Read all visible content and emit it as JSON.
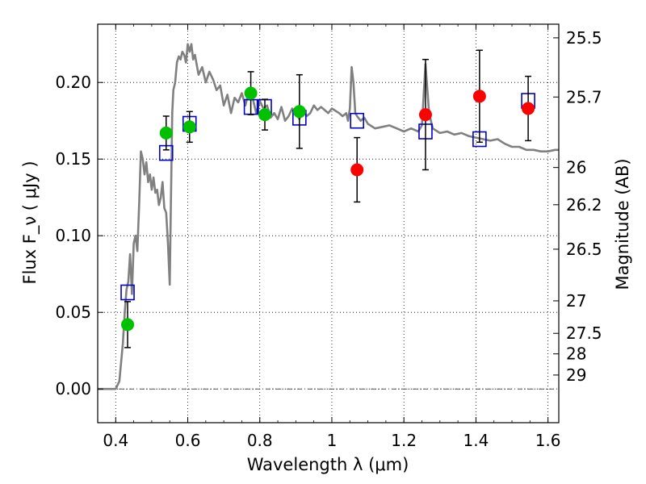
{
  "chart_data": {
    "type": "scatter",
    "xlabel": "Wavelength  λ (μm)",
    "ylabel": "Flux  F_ν  ( μJy )",
    "ylabel_right": "Magnitude (AB)",
    "xlim": [
      0.35,
      1.63
    ],
    "ylim": [
      -0.022,
      0.238
    ],
    "grid": true,
    "x_ticks": [
      {
        "value": 0.4,
        "label": "0.4"
      },
      {
        "value": 0.6,
        "label": "0.6"
      },
      {
        "value": 0.8,
        "label": "0.8"
      },
      {
        "value": 1.0,
        "label": "1"
      },
      {
        "value": 1.2,
        "label": "1.2"
      },
      {
        "value": 1.4,
        "label": "1.4"
      },
      {
        "value": 1.6,
        "label": "1.6"
      }
    ],
    "y_ticks": [
      {
        "value": 0.0,
        "label": "0.00"
      },
      {
        "value": 0.05,
        "label": "0.05"
      },
      {
        "value": 0.1,
        "label": "0.10"
      },
      {
        "value": 0.15,
        "label": "0.15"
      },
      {
        "value": 0.2,
        "label": "0.20"
      }
    ],
    "mag_ticks": [
      {
        "label": "25.5",
        "flux": 0.2291
      },
      {
        "label": "25.7",
        "flux": 0.1905
      },
      {
        "label": "26",
        "flux": 0.1445
      },
      {
        "label": "26.2",
        "flux": 0.1202
      },
      {
        "label": "26.5",
        "flux": 0.0912
      },
      {
        "label": "27",
        "flux": 0.0575
      },
      {
        "label": "27.5",
        "flux": 0.0363
      },
      {
        "label": "28",
        "flux": 0.0229
      },
      {
        "label": "29",
        "flux": 0.0091
      }
    ],
    "series": [
      {
        "kind": "line",
        "color": "#808080",
        "points": [
          [
            0.35,
            0.0
          ],
          [
            0.4,
            0.0
          ],
          [
            0.41,
            0.005
          ],
          [
            0.42,
            0.03
          ],
          [
            0.425,
            0.05
          ],
          [
            0.43,
            0.065
          ],
          [
            0.435,
            0.07
          ],
          [
            0.44,
            0.088
          ],
          [
            0.445,
            0.062
          ],
          [
            0.45,
            0.095
          ],
          [
            0.455,
            0.1
          ],
          [
            0.46,
            0.09
          ],
          [
            0.465,
            0.12
          ],
          [
            0.47,
            0.155
          ],
          [
            0.475,
            0.15
          ],
          [
            0.48,
            0.14
          ],
          [
            0.485,
            0.148
          ],
          [
            0.49,
            0.135
          ],
          [
            0.495,
            0.14
          ],
          [
            0.5,
            0.13
          ],
          [
            0.505,
            0.138
          ],
          [
            0.51,
            0.128
          ],
          [
            0.515,
            0.13
          ],
          [
            0.52,
            0.12
          ],
          [
            0.525,
            0.125
          ],
          [
            0.53,
            0.135
          ],
          [
            0.535,
            0.118
          ],
          [
            0.54,
            0.115
          ],
          [
            0.545,
            0.095
          ],
          [
            0.55,
            0.068
          ],
          [
            0.553,
            0.12
          ],
          [
            0.557,
            0.18
          ],
          [
            0.56,
            0.195
          ],
          [
            0.565,
            0.2
          ],
          [
            0.57,
            0.213
          ],
          [
            0.575,
            0.217
          ],
          [
            0.58,
            0.215
          ],
          [
            0.585,
            0.22
          ],
          [
            0.59,
            0.218
          ],
          [
            0.595,
            0.213
          ],
          [
            0.6,
            0.225
          ],
          [
            0.605,
            0.22
          ],
          [
            0.61,
            0.225
          ],
          [
            0.615,
            0.215
          ],
          [
            0.62,
            0.218
          ],
          [
            0.63,
            0.205
          ],
          [
            0.64,
            0.21
          ],
          [
            0.65,
            0.2
          ],
          [
            0.66,
            0.207
          ],
          [
            0.67,
            0.202
          ],
          [
            0.68,
            0.195
          ],
          [
            0.69,
            0.198
          ],
          [
            0.7,
            0.185
          ],
          [
            0.71,
            0.192
          ],
          [
            0.72,
            0.18
          ],
          [
            0.73,
            0.19
          ],
          [
            0.74,
            0.187
          ],
          [
            0.75,
            0.193
          ],
          [
            0.76,
            0.185
          ],
          [
            0.77,
            0.195
          ],
          [
            0.78,
            0.19
          ],
          [
            0.79,
            0.18
          ],
          [
            0.8,
            0.188
          ],
          [
            0.81,
            0.183
          ],
          [
            0.82,
            0.185
          ],
          [
            0.83,
            0.177
          ],
          [
            0.84,
            0.18
          ],
          [
            0.85,
            0.176
          ],
          [
            0.86,
            0.184
          ],
          [
            0.87,
            0.175
          ],
          [
            0.88,
            0.178
          ],
          [
            0.89,
            0.183
          ],
          [
            0.9,
            0.18
          ],
          [
            0.91,
            0.176
          ],
          [
            0.92,
            0.183
          ],
          [
            0.93,
            0.178
          ],
          [
            0.94,
            0.18
          ],
          [
            0.95,
            0.185
          ],
          [
            0.96,
            0.182
          ],
          [
            0.97,
            0.184
          ],
          [
            0.98,
            0.182
          ],
          [
            0.99,
            0.18
          ],
          [
            1.0,
            0.183
          ],
          [
            1.02,
            0.18
          ],
          [
            1.03,
            0.178
          ],
          [
            1.04,
            0.18
          ],
          [
            1.045,
            0.175
          ],
          [
            1.05,
            0.183
          ],
          [
            1.055,
            0.21
          ],
          [
            1.06,
            0.2
          ],
          [
            1.065,
            0.18
          ],
          [
            1.07,
            0.178
          ],
          [
            1.08,
            0.175
          ],
          [
            1.09,
            0.177
          ],
          [
            1.1,
            0.173
          ],
          [
            1.12,
            0.17
          ],
          [
            1.14,
            0.171
          ],
          [
            1.16,
            0.172
          ],
          [
            1.18,
            0.17
          ],
          [
            1.2,
            0.168
          ],
          [
            1.22,
            0.17
          ],
          [
            1.24,
            0.168
          ],
          [
            1.25,
            0.172
          ],
          [
            1.26,
            0.212
          ],
          [
            1.27,
            0.18
          ],
          [
            1.28,
            0.17
          ],
          [
            1.3,
            0.167
          ],
          [
            1.32,
            0.168
          ],
          [
            1.34,
            0.166
          ],
          [
            1.36,
            0.167
          ],
          [
            1.38,
            0.165
          ],
          [
            1.4,
            0.164
          ],
          [
            1.42,
            0.163
          ],
          [
            1.44,
            0.162
          ],
          [
            1.46,
            0.163
          ],
          [
            1.48,
            0.16
          ],
          [
            1.5,
            0.158
          ],
          [
            1.52,
            0.158
          ],
          [
            1.54,
            0.156
          ],
          [
            1.56,
            0.156
          ],
          [
            1.58,
            0.155
          ],
          [
            1.6,
            0.155
          ],
          [
            1.62,
            0.156
          ],
          [
            1.63,
            0.156
          ]
        ]
      },
      {
        "kind": "model-squares",
        "color": "#0000cc",
        "points": [
          [
            0.433,
            0.063
          ],
          [
            0.54,
            0.154
          ],
          [
            0.605,
            0.173
          ],
          [
            0.775,
            0.184
          ],
          [
            0.814,
            0.184
          ],
          [
            0.91,
            0.177
          ],
          [
            1.07,
            0.175
          ],
          [
            1.26,
            0.168
          ],
          [
            1.41,
            0.163
          ],
          [
            1.545,
            0.188
          ]
        ]
      },
      {
        "kind": "green-points",
        "color": "#00c000",
        "points": [
          {
            "x": 0.433,
            "y": 0.042,
            "err": 0.015
          },
          {
            "x": 0.54,
            "y": 0.167,
            "err": 0.011
          },
          {
            "x": 0.605,
            "y": 0.171,
            "err": 0.01
          },
          {
            "x": 0.775,
            "y": 0.193,
            "err": 0.014
          },
          {
            "x": 0.814,
            "y": 0.179,
            "err": 0.01
          },
          {
            "x": 0.91,
            "y": 0.181,
            "err": 0.024
          }
        ]
      },
      {
        "kind": "red-points",
        "color": "#ff0000",
        "points": [
          {
            "x": 1.07,
            "y": 0.143,
            "err": 0.021
          },
          {
            "x": 1.26,
            "y": 0.179,
            "err": 0.036
          },
          {
            "x": 1.41,
            "y": 0.191,
            "err": 0.03
          },
          {
            "x": 1.545,
            "y": 0.183,
            "err": 0.021
          }
        ]
      }
    ]
  }
}
